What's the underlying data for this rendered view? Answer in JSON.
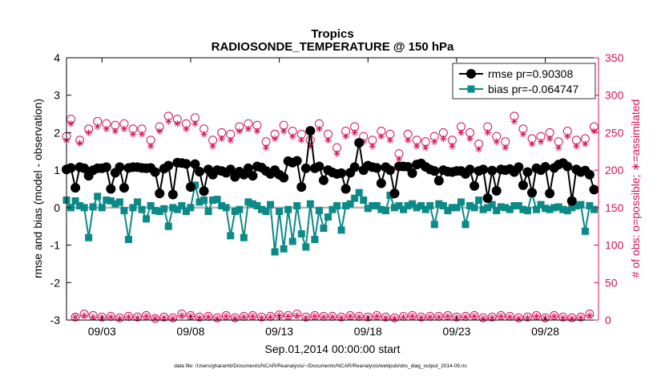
{
  "chart_data": {
    "type": "line",
    "title": "Tropics",
    "subtitle": "RADIOSONDE_TEMPERATURE @ 150 hPa",
    "ylabel": "rmse and bias (model - observation)",
    "y2label": "# of obs: o=possible; ∗=assimilated",
    "xlabel": "Sep.01,2014 00:00:00 start",
    "footnote": "data file: /Users/gharamti/Documents/NCAR/Reanalysis/~/Documents/NCAR/Reanalysis/webpub/obs_diag_output_2014-09.nc",
    "xlim": [
      1,
      31
    ],
    "ylim": [
      -3,
      4
    ],
    "y2lim": [
      0,
      350
    ],
    "x_ticks": [
      3,
      8,
      13,
      18,
      23,
      28
    ],
    "x_tick_labels": [
      "09/03",
      "09/08",
      "09/13",
      "09/18",
      "09/23",
      "09/28"
    ],
    "y_ticks": [
      -3,
      -2,
      -1,
      0,
      1,
      2,
      3,
      4
    ],
    "y_tick_labels": [
      "-3",
      "-2",
      "-1",
      "0",
      "1",
      "2",
      "3",
      "4"
    ],
    "y2_ticks": [
      0,
      50,
      100,
      150,
      200,
      250,
      300,
      350
    ],
    "y2_tick_labels": [
      "0",
      "50",
      "100",
      "150",
      "200",
      "250",
      "300",
      "350"
    ],
    "x_start": 1,
    "x_step": 0.25,
    "zero_line": 0,
    "legend_position": "top-right",
    "legend": [
      {
        "series": "rmse",
        "label": "rmse pr=0.90308"
      },
      {
        "series": "bias",
        "label": "bias pr=-0.064747"
      }
    ],
    "colors": {
      "rmse": "#000000",
      "bias": "#0b8a87",
      "obs": "#d4145a",
      "zero": "#b5b5b5",
      "axis_right": "#d4145a"
    },
    "series": [
      {
        "name": "rmse",
        "axis": "left",
        "values": [
          1.02,
          1.06,
          0.53,
          1.08,
          1.05,
          0.85,
          1.0,
          1.05,
          1.05,
          1.08,
          0.5,
          0.93,
          1.08,
          0.53,
          1.06,
          1.08,
          1.08,
          1.06,
          1.05,
          1.06,
          0.95,
          0.38,
          1.04,
          1.12,
          0.35,
          1.2,
          1.19,
          1.17,
          0.55,
          1.16,
          0.96,
          0.44,
          1.02,
          0.88,
          1.0,
          0.98,
          0.93,
          1.02,
          0.82,
          0.96,
          0.88,
          1.05,
          0.85,
          1.1,
          1.07,
          0.98,
          0.9,
          1.0,
          0.88,
          0.8,
          1.24,
          1.2,
          1.25,
          0.55,
          1.05,
          2.05,
          1.05,
          1.1,
          0.73,
          1.0,
          0.94,
          0.9,
          0.92,
          0.5,
          0.93,
          1.08,
          1.73,
          1.0,
          1.12,
          1.08,
          1.06,
          0.65,
          1.08,
          1.0,
          0.38,
          1.1,
          1.1,
          1.09,
          0.92,
          1.15,
          1.18,
          1.09,
          1.02,
          0.98,
          0.72,
          1.0,
          0.96,
          0.95,
          0.98,
          0.98,
          0.9,
          1.02,
          0.58,
          0.98,
          1.02,
          0.25,
          0.99,
          0.45,
          1.02,
          1.0,
          1.03,
          0.95,
          1.08,
          0.6,
          0.95,
          0.4,
          1.05,
          1.0,
          1.09,
          0.38,
          1.06,
          1.15,
          1.19,
          1.1,
          0.18,
          1.02,
          0.95,
          0.99,
          0.88,
          0.48
        ]
      },
      {
        "name": "bias",
        "axis": "left",
        "values": [
          0.2,
          0.0,
          0.18,
          0.05,
          0.0,
          -0.8,
          0.02,
          0.3,
          0.0,
          0.2,
          0.18,
          0.1,
          0.15,
          -0.08,
          -0.85,
          0.0,
          0.15,
          -0.05,
          -0.3,
          0.05,
          -0.08,
          -0.1,
          -0.03,
          -0.5,
          0.0,
          -0.05,
          0.05,
          -0.1,
          0.0,
          0.6,
          0.15,
          0.2,
          -0.1,
          0.2,
          0.22,
          0.05,
          0.0,
          -0.75,
          -0.1,
          -0.05,
          -0.8,
          0.15,
          0.1,
          0.05,
          -0.05,
          -0.1,
          0.08,
          -1.18,
          -0.1,
          -1.1,
          -0.05,
          -0.9,
          0.05,
          -0.7,
          -1.05,
          0.1,
          -0.85,
          -0.08,
          -0.55,
          -0.25,
          -0.05,
          0.05,
          -0.6,
          0.05,
          0.1,
          0.25,
          0.4,
          0.2,
          -0.02,
          0.05,
          0.05,
          -0.05,
          -0.08,
          0.33,
          0.0,
          0.05,
          -0.05,
          0.05,
          0.1,
          0.0,
          0.05,
          -0.05,
          0.05,
          -0.45,
          0.1,
          0.05,
          -0.08,
          0.0,
          0.0,
          0.15,
          -0.45,
          0.05,
          0.0,
          0.2,
          -0.05,
          0.0,
          0.08,
          -0.08,
          0.02,
          0.0,
          -0.05,
          0.05,
          0.05,
          -0.05,
          -0.08,
          0.38,
          -0.05,
          0.08,
          -0.02,
          -0.05,
          0.0,
          0.02,
          -0.05,
          -0.08,
          0.0,
          0.05,
          0.08,
          -0.63,
          0.05,
          -0.05
        ]
      },
      {
        "name": "possible",
        "axis": "right",
        "marker": "circle-asterisk",
        "values": [
          245,
          268,
          4,
          240,
          8,
          255,
          6,
          265,
          4,
          262,
          5,
          260,
          3,
          262,
          5,
          255,
          4,
          255,
          6,
          240,
          2,
          258,
          4,
          272,
          3,
          268,
          8,
          262,
          6,
          270,
          4,
          255,
          5,
          240,
          3,
          250,
          6,
          248,
          3,
          258,
          5,
          262,
          6,
          260,
          4,
          238,
          5,
          248,
          7,
          260,
          6,
          252,
          8,
          248,
          4,
          240,
          6,
          262,
          5,
          248,
          5,
          230,
          4,
          252,
          6,
          258,
          5,
          245,
          4,
          240,
          6,
          252,
          4,
          248,
          3,
          222,
          5,
          248,
          6,
          240,
          4,
          238,
          5,
          245,
          5,
          250,
          6,
          240,
          4,
          258,
          5,
          250,
          6,
          235,
          3,
          258,
          4,
          245,
          6,
          238,
          5,
          272,
          3,
          255,
          4,
          242,
          6,
          245,
          3,
          250,
          6,
          238,
          4,
          252,
          3,
          240,
          4,
          242,
          8,
          258
        ]
      },
      {
        "name": "assimilated",
        "axis": "right",
        "marker": "asterisk",
        "values": [
          240,
          262,
          4,
          236,
          6,
          250,
          4,
          258,
          3,
          255,
          4,
          252,
          2,
          255,
          4,
          248,
          3,
          248,
          5,
          232,
          2,
          252,
          3,
          265,
          2,
          262,
          6,
          255,
          5,
          262,
          3,
          248,
          4,
          232,
          2,
          242,
          5,
          240,
          2,
          252,
          4,
          255,
          5,
          252,
          3,
          230,
          4,
          242,
          6,
          252,
          5,
          245,
          6,
          240,
          3,
          232,
          5,
          255,
          4,
          240,
          4,
          222,
          3,
          245,
          5,
          250,
          4,
          238,
          3,
          232,
          5,
          245,
          3,
          240,
          2,
          215,
          4,
          240,
          5,
          232,
          3,
          230,
          4,
          238,
          4,
          242,
          5,
          232,
          3,
          250,
          4,
          242,
          5,
          228,
          2,
          250,
          3,
          238,
          5,
          230,
          4,
          265,
          2,
          248,
          3,
          235,
          5,
          238,
          2,
          242,
          5,
          230,
          3,
          245,
          2,
          232,
          3,
          235,
          6,
          252
        ]
      }
    ]
  }
}
